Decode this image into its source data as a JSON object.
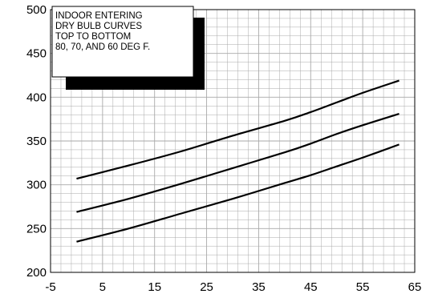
{
  "chart_data": {
    "type": "line",
    "title": "",
    "xlabel": "",
    "ylabel": "",
    "xlim": [
      -5,
      65
    ],
    "ylim": [
      200,
      500
    ],
    "x_ticks": [
      -5,
      5,
      15,
      25,
      35,
      45,
      55,
      65
    ],
    "y_ticks": [
      200,
      250,
      300,
      350,
      400,
      450,
      500
    ],
    "grid": true,
    "grid_minor": true,
    "annotation": [
      "INDOOR ENTERING",
      "DRY BULB CURVES",
      "TOP TO BOTTOM",
      "80, 70, AND 60 DEG F."
    ],
    "series": [
      {
        "x": [
          0,
          10,
          20,
          30,
          40,
          45,
          50,
          55,
          62
        ],
        "y": [
          307,
          322,
          338,
          356,
          373,
          383,
          394,
          405,
          419
        ]
      },
      {
        "x": [
          0,
          10,
          20,
          30,
          40,
          45,
          50,
          55,
          62
        ],
        "y": [
          269,
          284,
          301,
          319,
          337,
          347,
          358,
          368,
          381
        ]
      },
      {
        "x": [
          0,
          10,
          20,
          30,
          40,
          45,
          50,
          55,
          62
        ],
        "y": [
          235,
          250,
          267,
          284,
          302,
          311,
          321,
          331,
          346
        ]
      }
    ],
    "line_color": "#000000",
    "grid_color": "#a9a9a9"
  }
}
